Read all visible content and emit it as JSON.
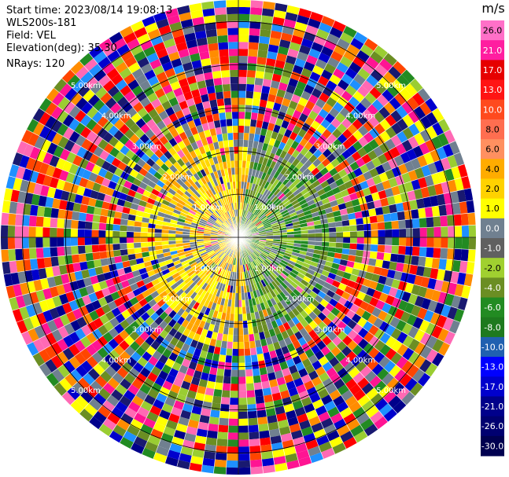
{
  "header": {
    "start_time": "Start time: 2023/08/14 19:08:13",
    "instrument": "WLS200s-181",
    "field": "Field: VEL",
    "elevation": "Elevation(deg): 35.30",
    "nrays": "NRays: 120"
  },
  "chart_data": {
    "type": "heatmap",
    "projection": "polar-ppi",
    "field": "VEL",
    "unit": "m/s",
    "nrays": 120,
    "range_rings_km": [
      {
        "value": 1.0,
        "label": "1.00km"
      },
      {
        "value": 2.0,
        "label": "2.00km"
      },
      {
        "value": 3.0,
        "label": "3.00km"
      },
      {
        "value": 4.0,
        "label": "4.00km"
      },
      {
        "value": 5.0,
        "label": "5.00km"
      }
    ],
    "max_range_km": 5.5,
    "colorbar": {
      "label": "m/s",
      "ticks": [
        "26.0",
        "21.0",
        "17.0",
        "13.0",
        "10.0",
        "8.0",
        "6.0",
        "4.0",
        "2.0",
        "1.0",
        "0.0",
        "-1.0",
        "-2.0",
        "-4.0",
        "-6.0",
        "-8.0",
        "-10.0",
        "-13.0",
        "-17.0",
        "-21.0",
        "-26.0",
        "-30.0"
      ],
      "colors": [
        "#ff70c8",
        "#ff1ea0",
        "#e60000",
        "#ff1414",
        "#ff4a1e",
        "#ff6e50",
        "#ff9060",
        "#ffac00",
        "#ffd200",
        "#ffff00",
        "#708090",
        "#606060",
        "#a0d030",
        "#6b8e23",
        "#228b22",
        "#1e7a1e",
        "#2060b0",
        "#0000ff",
        "#0000cd",
        "#00008b",
        "#000070",
        "#000050"
      ]
    },
    "background_noise_colors": [
      "#ff1493",
      "#ff69b4",
      "#0000cd",
      "#00008b",
      "#ffff00",
      "#ff4500",
      "#228b22",
      "#708090",
      "#6b8e23",
      "#ff8c00",
      "#ff0000",
      "#1e90ff",
      "#191970",
      "#9acd32"
    ],
    "near_field_pattern": {
      "north_west_colors": [
        "#ffd700",
        "#ffff00",
        "#ffa500",
        "#708090"
      ],
      "south_east_colors": [
        "#6b8e23",
        "#228b22",
        "#9acd32",
        "#708090"
      ]
    }
  }
}
